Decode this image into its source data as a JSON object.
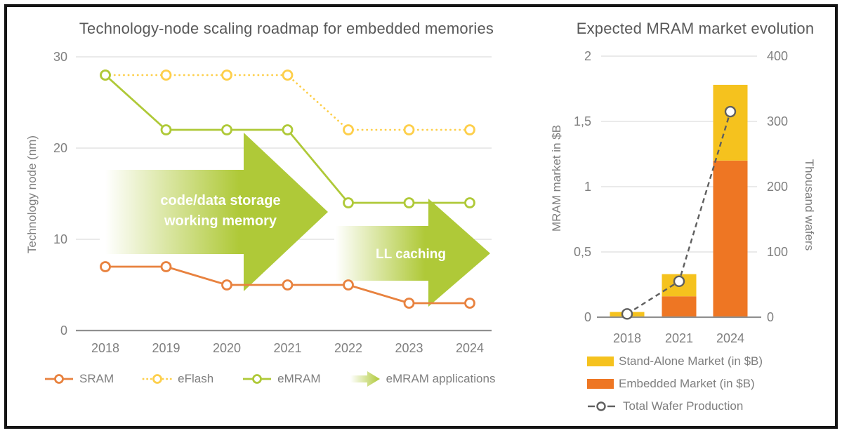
{
  "frame": {
    "background": "#FFFFFF",
    "border_color": "#141414"
  },
  "chart_data": [
    {
      "type": "line",
      "title": "Technology-node scaling roadmap for embedded memories",
      "ylabel": "Technology node (nm)",
      "xlabel": "",
      "ylim": [
        0,
        32
      ],
      "grid": true,
      "legend_position": "bottom",
      "categories": [
        "2018",
        "2019",
        "2020",
        "2021",
        "2022",
        "2023",
        "2024"
      ],
      "yticks": [
        {
          "label": "30",
          "value": 30
        },
        {
          "label": "20",
          "value": 20
        },
        {
          "label": "10",
          "value": 10
        },
        {
          "label": "0",
          "value": 0
        }
      ],
      "series": [
        {
          "name": "SRAM",
          "color": "#E8823F",
          "line_style": "solid",
          "marker": "circle",
          "values": [
            7,
            7,
            5,
            5,
            5,
            3,
            3
          ]
        },
        {
          "name": "eFlash",
          "color": "#FDCF4B",
          "line_style": "dotted",
          "marker": "circle",
          "values": [
            28,
            28,
            28,
            28,
            22,
            22,
            22
          ]
        },
        {
          "name": "eMRAM",
          "color": "#AFC938",
          "line_style": "solid",
          "marker": "circle",
          "values": [
            28,
            22,
            22,
            22,
            14,
            14,
            14
          ]
        }
      ],
      "annotations": [
        {
          "shape": "right-arrow",
          "color": "#AFC938",
          "text_lines": [
            "code/data storage",
            "working memory"
          ]
        },
        {
          "shape": "right-arrow",
          "color": "#AFC938",
          "text_lines": [
            "LL caching"
          ]
        }
      ],
      "extra_legend": {
        "label": "eMRAM applications",
        "marker": "green-arrow"
      }
    },
    {
      "type": "bar",
      "title": "Expected MRAM market evolution",
      "ylabel_left": "MRAM market in $B",
      "ylabel_right": "Thousand wafers",
      "ylim_left": [
        0,
        2
      ],
      "ylim_right": [
        0,
        400
      ],
      "grid": true,
      "legend_position": "bottom",
      "categories": [
        "2018",
        "2021",
        "2024"
      ],
      "yticks_left": [
        {
          "label": "2",
          "value": 2
        },
        {
          "label": "1,5",
          "value": 1.5
        },
        {
          "label": "1",
          "value": 1
        },
        {
          "label": "0,5",
          "value": 0.5
        },
        {
          "label": "0",
          "value": 0
        }
      ],
      "yticks_right": [
        {
          "label": "400",
          "value": 400
        },
        {
          "label": "300",
          "value": 300
        },
        {
          "label": "200",
          "value": 200
        },
        {
          "label": "100",
          "value": 100
        },
        {
          "label": "0",
          "value": 0
        }
      ],
      "series": [
        {
          "name": "Stand-Alone Market (in $B)",
          "role": "bar-stack-top",
          "color": "#F5C21E",
          "values": [
            0.04,
            0.17,
            0.58
          ]
        },
        {
          "name": "Embedded Market (in $B)",
          "role": "bar-stack-bottom",
          "color": "#EE7623",
          "values": [
            0,
            0.16,
            1.2
          ]
        },
        {
          "name": "Total Wafer Production",
          "role": "line-right-axis",
          "color": "#5F5F5F",
          "line_style": "dashed",
          "marker": "circle",
          "values": [
            5,
            55,
            315
          ]
        }
      ]
    }
  ]
}
